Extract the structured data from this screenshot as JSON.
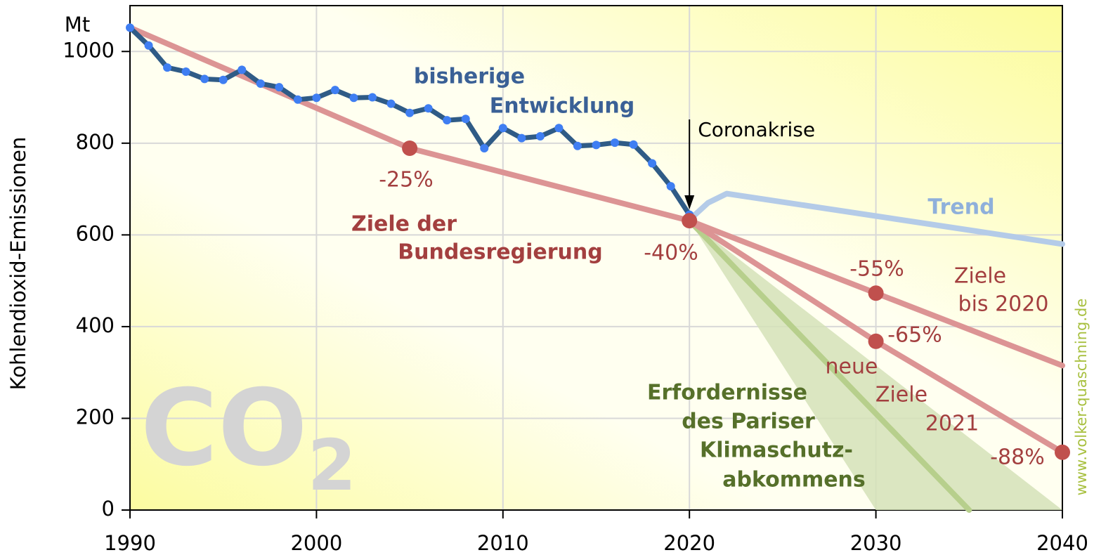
{
  "chart_data": {
    "type": "line",
    "y_label": "Kohlendioxid-Emissionen",
    "y_unit": "Mt",
    "xlim": [
      1990,
      2040
    ],
    "xticks": [
      1990,
      2000,
      2010,
      2020,
      2030,
      2040
    ],
    "ylim": [
      0,
      1100
    ],
    "yticks": [
      0,
      200,
      400,
      600,
      800,
      1000
    ],
    "grid": true,
    "watermark": "CO",
    "watermark_sub": "2",
    "credit": "www.volker-quaschning.de",
    "annotation": "Coronakrise",
    "annotation_x": 2020,
    "series": [
      {
        "name": [
          "Erfordernisse",
          "des Pariser",
          "Klimaschutz-",
          "abkommens"
        ],
        "color": "#b7cf8c",
        "band_color": "#d5e2b8",
        "x": [
          2020,
          2035
        ],
        "values": [
          631,
          0
        ],
        "band_x": [
          2020,
          2030,
          2040
        ],
        "band_values": [
          631,
          0,
          0
        ]
      },
      {
        "name": [
          "Trend"
        ],
        "color": "#b4cbe8",
        "x": [
          2020.3,
          2021,
          2022,
          2040
        ],
        "values": [
          644,
          670,
          690,
          580
        ]
      },
      {
        "name": [
          "Ziele der",
          "Bundesregierung"
        ],
        "color": "#dc9494",
        "x": [
          1990,
          2005,
          2020
        ],
        "values": [
          1052,
          789,
          631
        ]
      },
      {
        "name": [
          "Ziele",
          "bis 2020"
        ],
        "color": "#dc9494",
        "x": [
          2020,
          2030,
          2040
        ],
        "values": [
          631,
          473,
          315
        ]
      },
      {
        "name": [
          "neue",
          "Ziele",
          "2021"
        ],
        "color": "#dc9494",
        "x": [
          2020,
          2030,
          2040
        ],
        "values": [
          631,
          368,
          126
        ]
      },
      {
        "name": [
          "bisherige",
          "Entwicklung"
        ],
        "color": "#2f5b86",
        "marker_color": "#3f7ef2",
        "x": [
          1990,
          1991,
          1992,
          1993,
          1994,
          1995,
          1996,
          1997,
          1998,
          1999,
          2000,
          2001,
          2002,
          2003,
          2004,
          2005,
          2006,
          2007,
          2008,
          2009,
          2010,
          2011,
          2012,
          2013,
          2014,
          2015,
          2016,
          2017,
          2018,
          2019,
          2020
        ],
        "values": [
          1052,
          1013,
          965,
          956,
          940,
          938,
          960,
          930,
          922,
          895,
          899,
          916,
          899,
          900,
          886,
          866,
          876,
          850,
          853,
          789,
          833,
          811,
          815,
          833,
          794,
          796,
          801,
          797,
          756,
          706,
          644
        ]
      }
    ],
    "target_points": [
      {
        "x": 2005,
        "value": 789,
        "label": "-25%"
      },
      {
        "x": 2020,
        "value": 631,
        "label": "-40%"
      },
      {
        "x": 2030,
        "value": 473,
        "label": "-55%"
      },
      {
        "x": 2030,
        "value": 368,
        "label": "-65%"
      },
      {
        "x": 2040,
        "value": 126,
        "label": "-88%"
      }
    ],
    "target_color": "#c0504d"
  }
}
